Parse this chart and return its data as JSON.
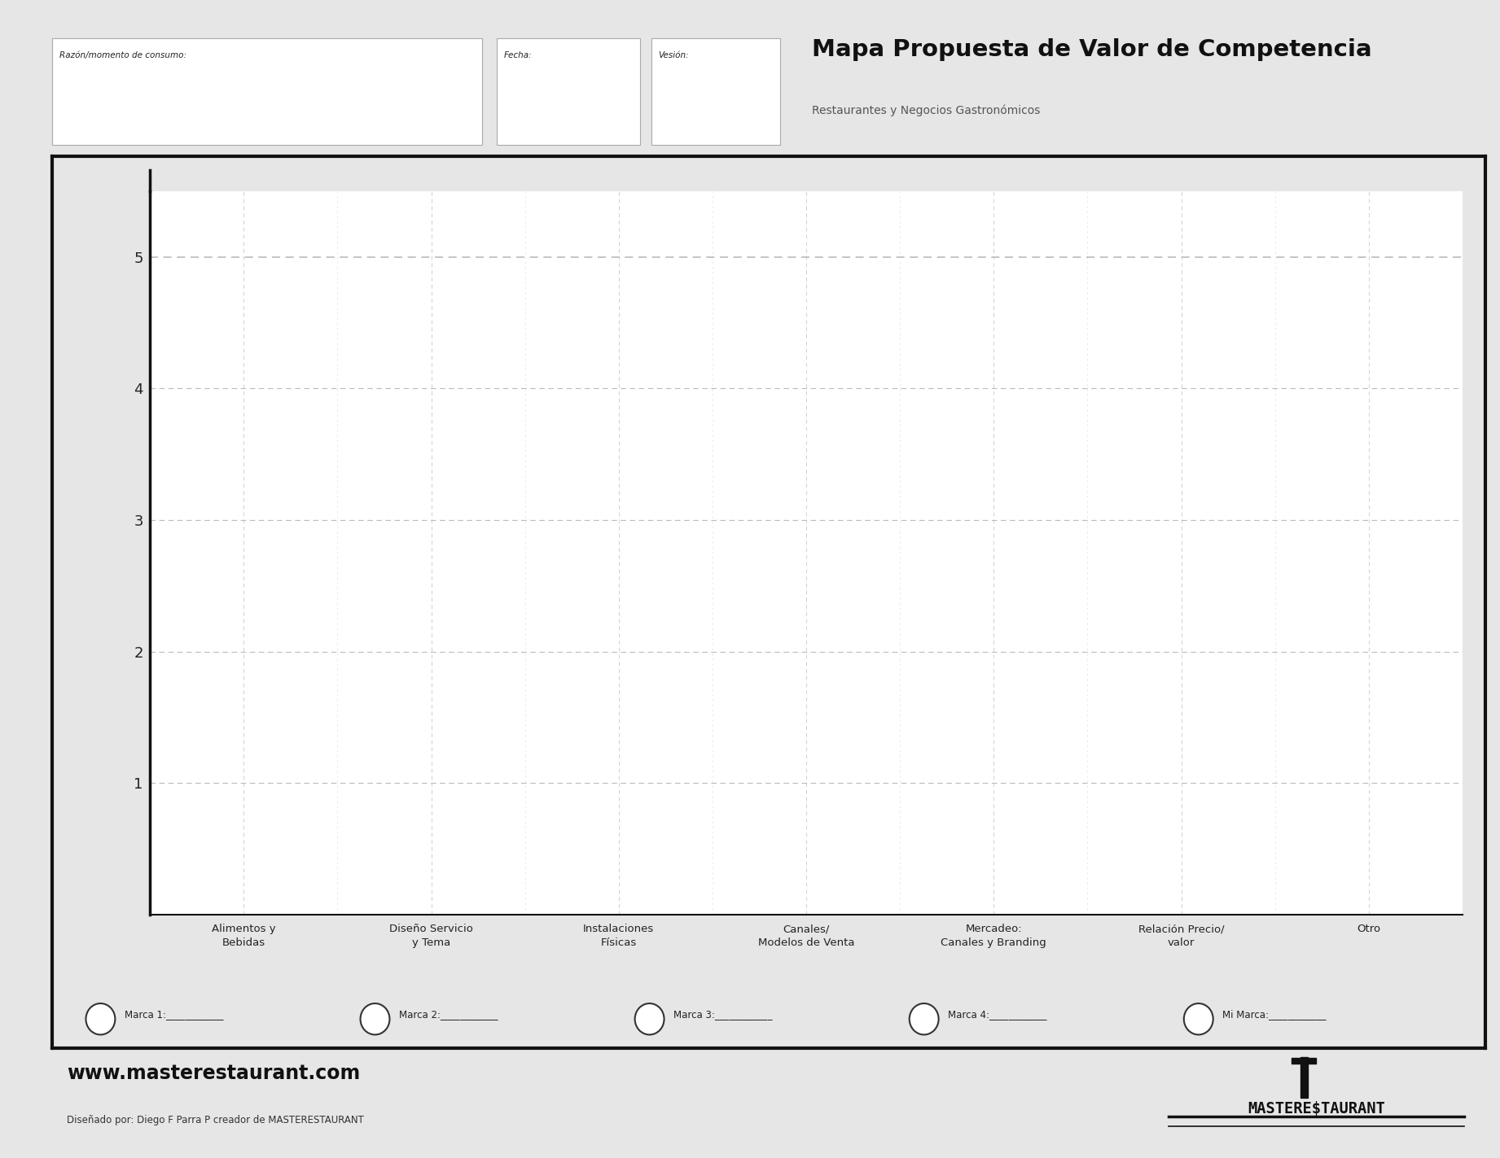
{
  "title": "Mapa Propuesta de Valor de Competencia",
  "subtitle": "Restaurantes y Negocios Gastronómicos",
  "field1_label": "Razón/momento de consumo:",
  "field2_label": "Fecha:",
  "field3_label": "Vesión:",
  "x_categories": [
    "Alimentos y\nBebidas",
    "Diseño Servicio\ny Tema",
    "Instalaciones\nFísicas",
    "Canales/\nModelos de Venta",
    "Mercadeo:\nCanales y Branding",
    "Relación Precio/\nvalor",
    "Otro"
  ],
  "y_ticks": [
    1,
    2,
    3,
    4,
    5
  ],
  "y_lim": [
    0,
    5.5
  ],
  "legend_items": [
    {
      "label": "Marca 1:"
    },
    {
      "label": "Marca 2:"
    },
    {
      "label": "Marca 3:"
    },
    {
      "label": "Marca 4:"
    },
    {
      "label": "Mi Marca:"
    }
  ],
  "footer_url": "www.masterestaurant.com",
  "footer_credit": "Diseñado por: Diego F Parra P creador de MASTERESTAURANT",
  "bg_color": "#e6e6e6",
  "plot_bg_color": "#ffffff",
  "border_color": "#111111",
  "grid_dashed_color": "#bbbbbb",
  "grid_light_color": "#d0d0d0",
  "axis_color": "#111111",
  "text_color": "#222222",
  "header_box_color": "#ffffff",
  "header_box_edge": "#aaaaaa"
}
